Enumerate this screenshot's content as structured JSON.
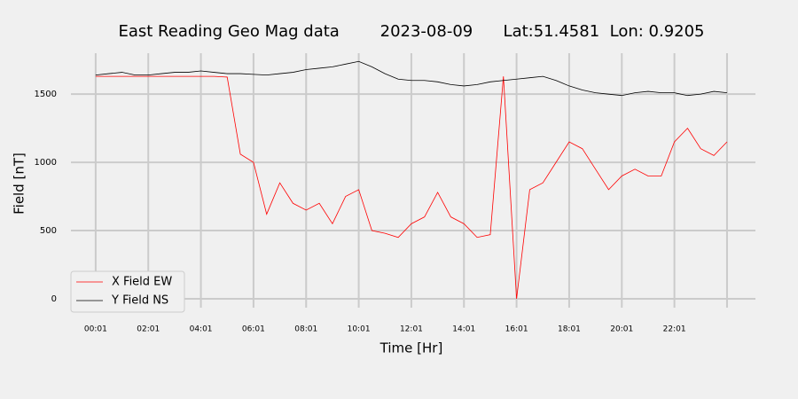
{
  "chart_data": {
    "type": "line",
    "title": "East Reading Geo Mag data        2023-08-09      Lat:51.4581  Lon: 0.9205",
    "xlabel": "Time  [Hr]",
    "ylabel": "Field  [nT]",
    "x": [
      0,
      0.5,
      1,
      1.5,
      2,
      2.5,
      3,
      3.5,
      4,
      4.5,
      5,
      5.5,
      6,
      6.5,
      7,
      7.5,
      8,
      8.5,
      9,
      9.5,
      10,
      10.5,
      11,
      11.5,
      12,
      12.5,
      13,
      13.5,
      14,
      14.5,
      15,
      15.5,
      16,
      16.5,
      17,
      17.5,
      18,
      18.5,
      19,
      19.5,
      20,
      20.5,
      21,
      21.5,
      22,
      22.5,
      23,
      23.5,
      24
    ],
    "series": [
      {
        "name": "X Field EW",
        "color": "#ff0000",
        "values": [
          1630,
          1630,
          1630,
          1630,
          1630,
          1630,
          1630,
          1630,
          1630,
          1630,
          1625,
          1060,
          1000,
          620,
          850,
          700,
          650,
          700,
          550,
          750,
          800,
          500,
          480,
          450,
          550,
          600,
          780,
          600,
          550,
          450,
          470,
          1630,
          0,
          800,
          850,
          1000,
          1150,
          1100,
          950,
          800,
          900,
          950,
          900,
          900,
          1150,
          1250,
          1100,
          1050,
          1150
        ]
      },
      {
        "name": "Y Field NS",
        "color": "#000000",
        "values": [
          1640,
          1650,
          1660,
          1640,
          1640,
          1650,
          1660,
          1660,
          1670,
          1660,
          1650,
          1650,
          1645,
          1640,
          1650,
          1660,
          1680,
          1690,
          1700,
          1720,
          1740,
          1700,
          1650,
          1610,
          1600,
          1600,
          1590,
          1570,
          1560,
          1570,
          1590,
          1600,
          1610,
          1620,
          1630,
          1600,
          1560,
          1530,
          1510,
          1500,
          1490,
          1510,
          1520,
          1510,
          1510,
          1490,
          1500,
          1520,
          1510
        ]
      }
    ],
    "xlim": [
      -0.94,
      25.08
    ],
    "xticks": [
      {
        "value": 0,
        "label": "00:01"
      },
      {
        "value": 2,
        "label": "02:01"
      },
      {
        "value": 4,
        "label": "04:01"
      },
      {
        "value": 6,
        "label": "06:01"
      },
      {
        "value": 8,
        "label": "08:01"
      },
      {
        "value": 10,
        "label": "10:01"
      },
      {
        "value": 12,
        "label": "12:01"
      },
      {
        "value": 14,
        "label": "14:01"
      },
      {
        "value": 16,
        "label": "16:01"
      },
      {
        "value": 18,
        "label": "18:01"
      },
      {
        "value": 20,
        "label": "20:01"
      },
      {
        "value": 22,
        "label": "22:01"
      },
      {
        "value": 24,
        "label": ""
      }
    ],
    "ylim": [
      -65,
      1800
    ],
    "yticks": [
      0,
      500,
      1000,
      1500
    ],
    "grid": true,
    "legend": "lower left"
  }
}
